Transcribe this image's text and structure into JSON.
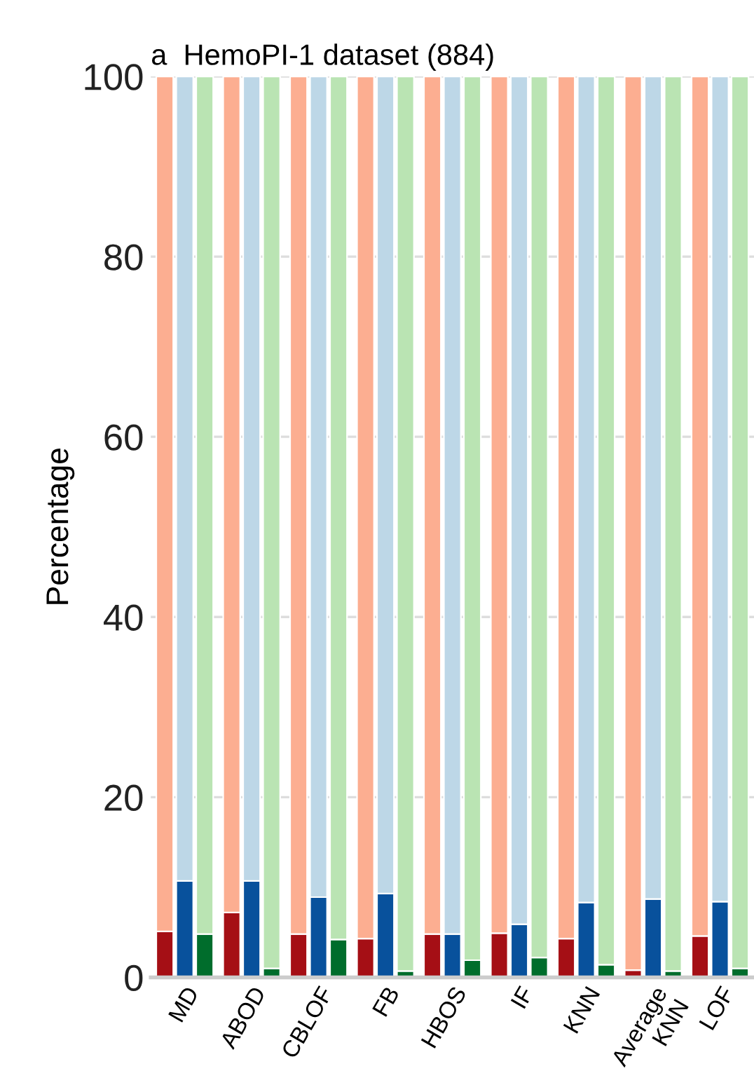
{
  "chart_data": {
    "type": "bar",
    "stacked": true,
    "title": "a  HemoPI-1 dataset (884)",
    "ylabel": "Percentage",
    "categories": [
      null,
      "MD",
      null,
      null,
      "ABOD",
      null,
      null,
      "CBLOF",
      null,
      null,
      "FB",
      null,
      null,
      "HBOS",
      null,
      null,
      "IF",
      null,
      null,
      "KNN",
      null,
      null,
      "Average\nKNN",
      null,
      null,
      "LOF",
      null
    ],
    "series": [
      {
        "colors": [
          "#a50f15",
          "#08519c",
          "#006d2c",
          "#a50f15",
          "#08519c",
          "#006d2c",
          "#a50f15",
          "#08519c",
          "#006d2c",
          "#a50f15",
          "#08519c",
          "#006d2c",
          "#a50f15",
          "#08519c",
          "#006d2c",
          "#a50f15",
          "#08519c",
          "#006d2c",
          "#a50f15",
          "#08519c",
          "#006d2c",
          "#a50f15",
          "#08519c",
          "#006d2c",
          "#a50f15",
          "#08519c",
          "#006d2c"
        ],
        "values": [
          5.1,
          10.7,
          4.8,
          7.2,
          10.7,
          1.0,
          4.8,
          8.9,
          4.2,
          4.3,
          9.3,
          0.7,
          4.8,
          4.8,
          1.9,
          4.9,
          5.9,
          2.2,
          4.3,
          8.3,
          1.4,
          0.8,
          8.7,
          0.7,
          4.6,
          8.4,
          1.0
        ]
      },
      {
        "colors": [
          "#fcae91",
          "#bdd7e7",
          "#bae4b3",
          "#fcae91",
          "#bdd7e7",
          "#bae4b3",
          "#fcae91",
          "#bdd7e7",
          "#bae4b3",
          "#fcae91",
          "#bdd7e7",
          "#bae4b3",
          "#fcae91",
          "#bdd7e7",
          "#bae4b3",
          "#fcae91",
          "#bdd7e7",
          "#bae4b3",
          "#fcae91",
          "#bdd7e7",
          "#bae4b3",
          "#fcae91",
          "#bdd7e7",
          "#bae4b3",
          "#fcae91",
          "#bdd7e7",
          "#bae4b3"
        ],
        "values": [
          94.9,
          89.3,
          95.2,
          92.8,
          89.3,
          99.0,
          95.2,
          91.1,
          95.8,
          95.7,
          90.7,
          99.3,
          95.2,
          95.2,
          98.1,
          95.1,
          94.1,
          97.8,
          95.7,
          91.7,
          98.6,
          99.2,
          91.3,
          99.3,
          95.4,
          91.6,
          99.0
        ]
      }
    ],
    "ylim": [
      0,
      100
    ],
    "yticks": [
      0,
      20,
      40,
      60,
      80,
      100
    ],
    "grid": "y",
    "legend": false
  }
}
